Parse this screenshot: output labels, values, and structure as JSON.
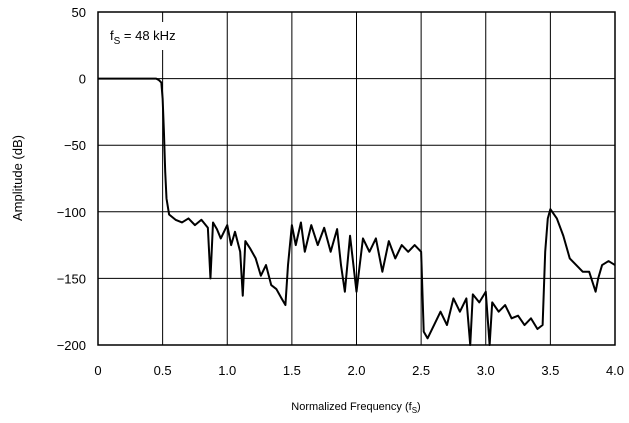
{
  "chart_data": {
    "type": "line",
    "ylabel": "Amplitude (dB)",
    "xlabel": {
      "text": "Normalized Frequency (f",
      "sub": "S",
      "end": ")"
    },
    "annotation": {
      "text": "f",
      "sub": "S",
      "end": " = 48 kHz"
    },
    "color": "#000000",
    "grid": true,
    "xlim": [
      0,
      4
    ],
    "ylim": [
      -200,
      50
    ],
    "xticks": [
      0,
      0.5,
      {
        "value": 1,
        "label": "1.0"
      },
      1.5,
      {
        "value": 2,
        "label": "2.0"
      },
      2.5,
      {
        "value": 3,
        "label": "3.0"
      },
      3.5,
      {
        "value": 4,
        "label": "4.0"
      }
    ],
    "yticks": [
      50,
      0,
      {
        "value": -50,
        "label": "−50"
      },
      {
        "value": -100,
        "label": "−100"
      },
      {
        "value": -150,
        "label": "−150"
      },
      {
        "value": -200,
        "label": "−200"
      }
    ],
    "x": [
      0,
      0.45,
      0.47,
      0.49,
      0.5,
      0.51,
      0.52,
      0.53,
      0.55,
      0.6,
      0.65,
      0.7,
      0.75,
      0.8,
      0.85,
      0.87,
      0.89,
      0.92,
      0.95,
      1.0,
      1.03,
      1.06,
      1.1,
      1.12,
      1.14,
      1.18,
      1.22,
      1.26,
      1.3,
      1.34,
      1.38,
      1.42,
      1.45,
      1.47,
      1.5,
      1.53,
      1.57,
      1.6,
      1.65,
      1.7,
      1.75,
      1.8,
      1.85,
      1.88,
      1.91,
      1.95,
      2.0,
      2.05,
      2.1,
      2.15,
      2.2,
      2.25,
      2.3,
      2.35,
      2.4,
      2.45,
      2.5,
      2.52,
      2.55,
      2.6,
      2.65,
      2.7,
      2.75,
      2.8,
      2.85,
      2.88,
      2.9,
      2.95,
      3.0,
      3.03,
      3.05,
      3.1,
      3.15,
      3.2,
      3.25,
      3.3,
      3.35,
      3.4,
      3.44,
      3.46,
      3.48,
      3.5,
      3.55,
      3.6,
      3.65,
      3.7,
      3.75,
      3.8,
      3.85,
      3.87,
      3.9,
      3.95,
      4.0
    ],
    "values": [
      0,
      0,
      -1,
      -3,
      -15,
      -40,
      -70,
      -90,
      -102,
      -106,
      -108,
      -105,
      -110,
      -106,
      -112,
      -150,
      -108,
      -113,
      -120,
      -110,
      -125,
      -115,
      -130,
      -163,
      -122,
      -128,
      -135,
      -148,
      -140,
      -155,
      -158,
      -165,
      -170,
      -140,
      -110,
      -125,
      -108,
      -130,
      -110,
      -125,
      -112,
      -130,
      -113,
      -140,
      -160,
      -118,
      -160,
      -120,
      -130,
      -120,
      -145,
      -122,
      -135,
      -125,
      -130,
      -125,
      -130,
      -190,
      -195,
      -185,
      -175,
      -185,
      -165,
      -175,
      -165,
      -200,
      -162,
      -168,
      -160,
      -200,
      -168,
      -175,
      -170,
      -180,
      -178,
      -185,
      -180,
      -188,
      -185,
      -130,
      -105,
      -98,
      -105,
      -118,
      -135,
      -140,
      -145,
      -145,
      -160,
      -150,
      -140,
      -137,
      -140
    ]
  }
}
